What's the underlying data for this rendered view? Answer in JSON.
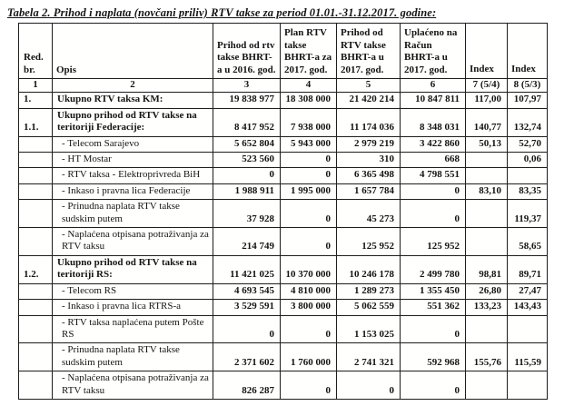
{
  "title": "Tabela 2.  Prihod i naplata (novčani priliv) RTV takse za period 01.01.-31.12.2017. godine:",
  "table": {
    "headers": {
      "red_br": "Red. br.",
      "opis": "Opis",
      "col3": "Prihod od rtv takse BHRT-a u 2016. god.",
      "col4": "Plan RTV takse BHRT-a za 2017. god.",
      "col5": "Prihod od RTV takse BHRT-a u 2017. god.",
      "col6": "Uplaćeno na Račun BHRT-a u 2017. god.",
      "col7": "Index",
      "col8": "Index"
    },
    "numbering": [
      "1",
      "2",
      "3",
      "4",
      "5",
      "6",
      "7 (5/4)",
      "8 (5/3)"
    ],
    "rows": [
      {
        "num": "1.",
        "opis": "Ukupno RTV taksa KM:",
        "c3": "19 838 977",
        "c4": "18 308 000",
        "c5": "21 420 214",
        "c6": "10 847 811",
        "c7": "117,00",
        "c8": "107,97",
        "bold": true
      },
      {
        "num": "1.1.",
        "opis": "Ukupno prihod od RTV takse na teritoriji Federacije:",
        "c3": "8 417 952",
        "c4": "7 938 000",
        "c5": "11 174 036",
        "c6": "8 348 031",
        "c7": "140,77",
        "c8": "132,74",
        "bold": true
      },
      {
        "num": "",
        "opis": "- Telecom Sarajevo",
        "c3": "5 652 804",
        "c4": "5 943 000",
        "c5": "2 979 219",
        "c6": "3 422 860",
        "c7": "50,13",
        "c8": "52,70",
        "bold": false
      },
      {
        "num": "",
        "opis": "- HT Mostar",
        "c3": "523 560",
        "c4": "0",
        "c5": "310",
        "c6": "668",
        "c7": "",
        "c8": "0,06",
        "bold": false
      },
      {
        "num": "",
        "opis": "- RTV taksa - Elektroprivreda BiH",
        "c3": "0",
        "c4": "0",
        "c5": "6 365 498",
        "c6": "4 798 551",
        "c7": "",
        "c8": "",
        "bold": false
      },
      {
        "num": "",
        "opis": "- Inkaso i pravna lica Federacije",
        "c3": "1 988 911",
        "c4": "1 995 000",
        "c5": "1 657 784",
        "c6": "0",
        "c7": "83,10",
        "c8": "83,35",
        "bold": false
      },
      {
        "num": "",
        "opis": "- Prinudna naplata RTV takse sudskim putem",
        "c3": "37 928",
        "c4": "0",
        "c5": "45 273",
        "c6": "0",
        "c7": "",
        "c8": "119,37",
        "bold": false
      },
      {
        "num": "",
        "opis": "- Naplaćena otpisana potraživanja za RTV taksu",
        "c3": "214 749",
        "c4": "0",
        "c5": "125 952",
        "c6": "125 952",
        "c7": "",
        "c8": "58,65",
        "bold": false
      },
      {
        "num": "1.2.",
        "opis": "Ukupno prihod od RTV takse na teritoriji RS:",
        "c3": "11 421 025",
        "c4": "10 370 000",
        "c5": "10 246 178",
        "c6": "2 499 780",
        "c7": "98,81",
        "c8": "89,71",
        "bold": true
      },
      {
        "num": "",
        "opis": "- Telecom RS",
        "c3": "4 693 545",
        "c4": "4 810 000",
        "c5": "1 289 273",
        "c6": "1 355 450",
        "c7": "26,80",
        "c8": "27,47",
        "bold": false
      },
      {
        "num": "",
        "opis": "- Inkaso i pravna lica RTRS-a",
        "c3": "3 529 591",
        "c4": "3 800 000",
        "c5": "5 062 559",
        "c6": "551 362",
        "c7": "133,23",
        "c8": "143,43",
        "bold": false
      },
      {
        "num": "",
        "opis": "- RTV taksa naplaćena putem Pošte RS",
        "c3": "0",
        "c4": "0",
        "c5": "1 153 025",
        "c6": "0",
        "c7": "",
        "c8": "",
        "bold": false
      },
      {
        "num": "",
        "opis": "- Prinudna naplata RTV takse sudskim putem",
        "c3": "2 371 602",
        "c4": "1 760 000",
        "c5": "2 741 321",
        "c6": "592 968",
        "c7": "155,76",
        "c8": "115,59",
        "bold": false
      },
      {
        "num": "",
        "opis": "- Naplaćena otpisana potraživanja za RTV taksu",
        "c3": "826 287",
        "c4": "0",
        "c5": "0",
        "c6": "0",
        "c7": "",
        "c8": "",
        "bold": false
      }
    ]
  }
}
